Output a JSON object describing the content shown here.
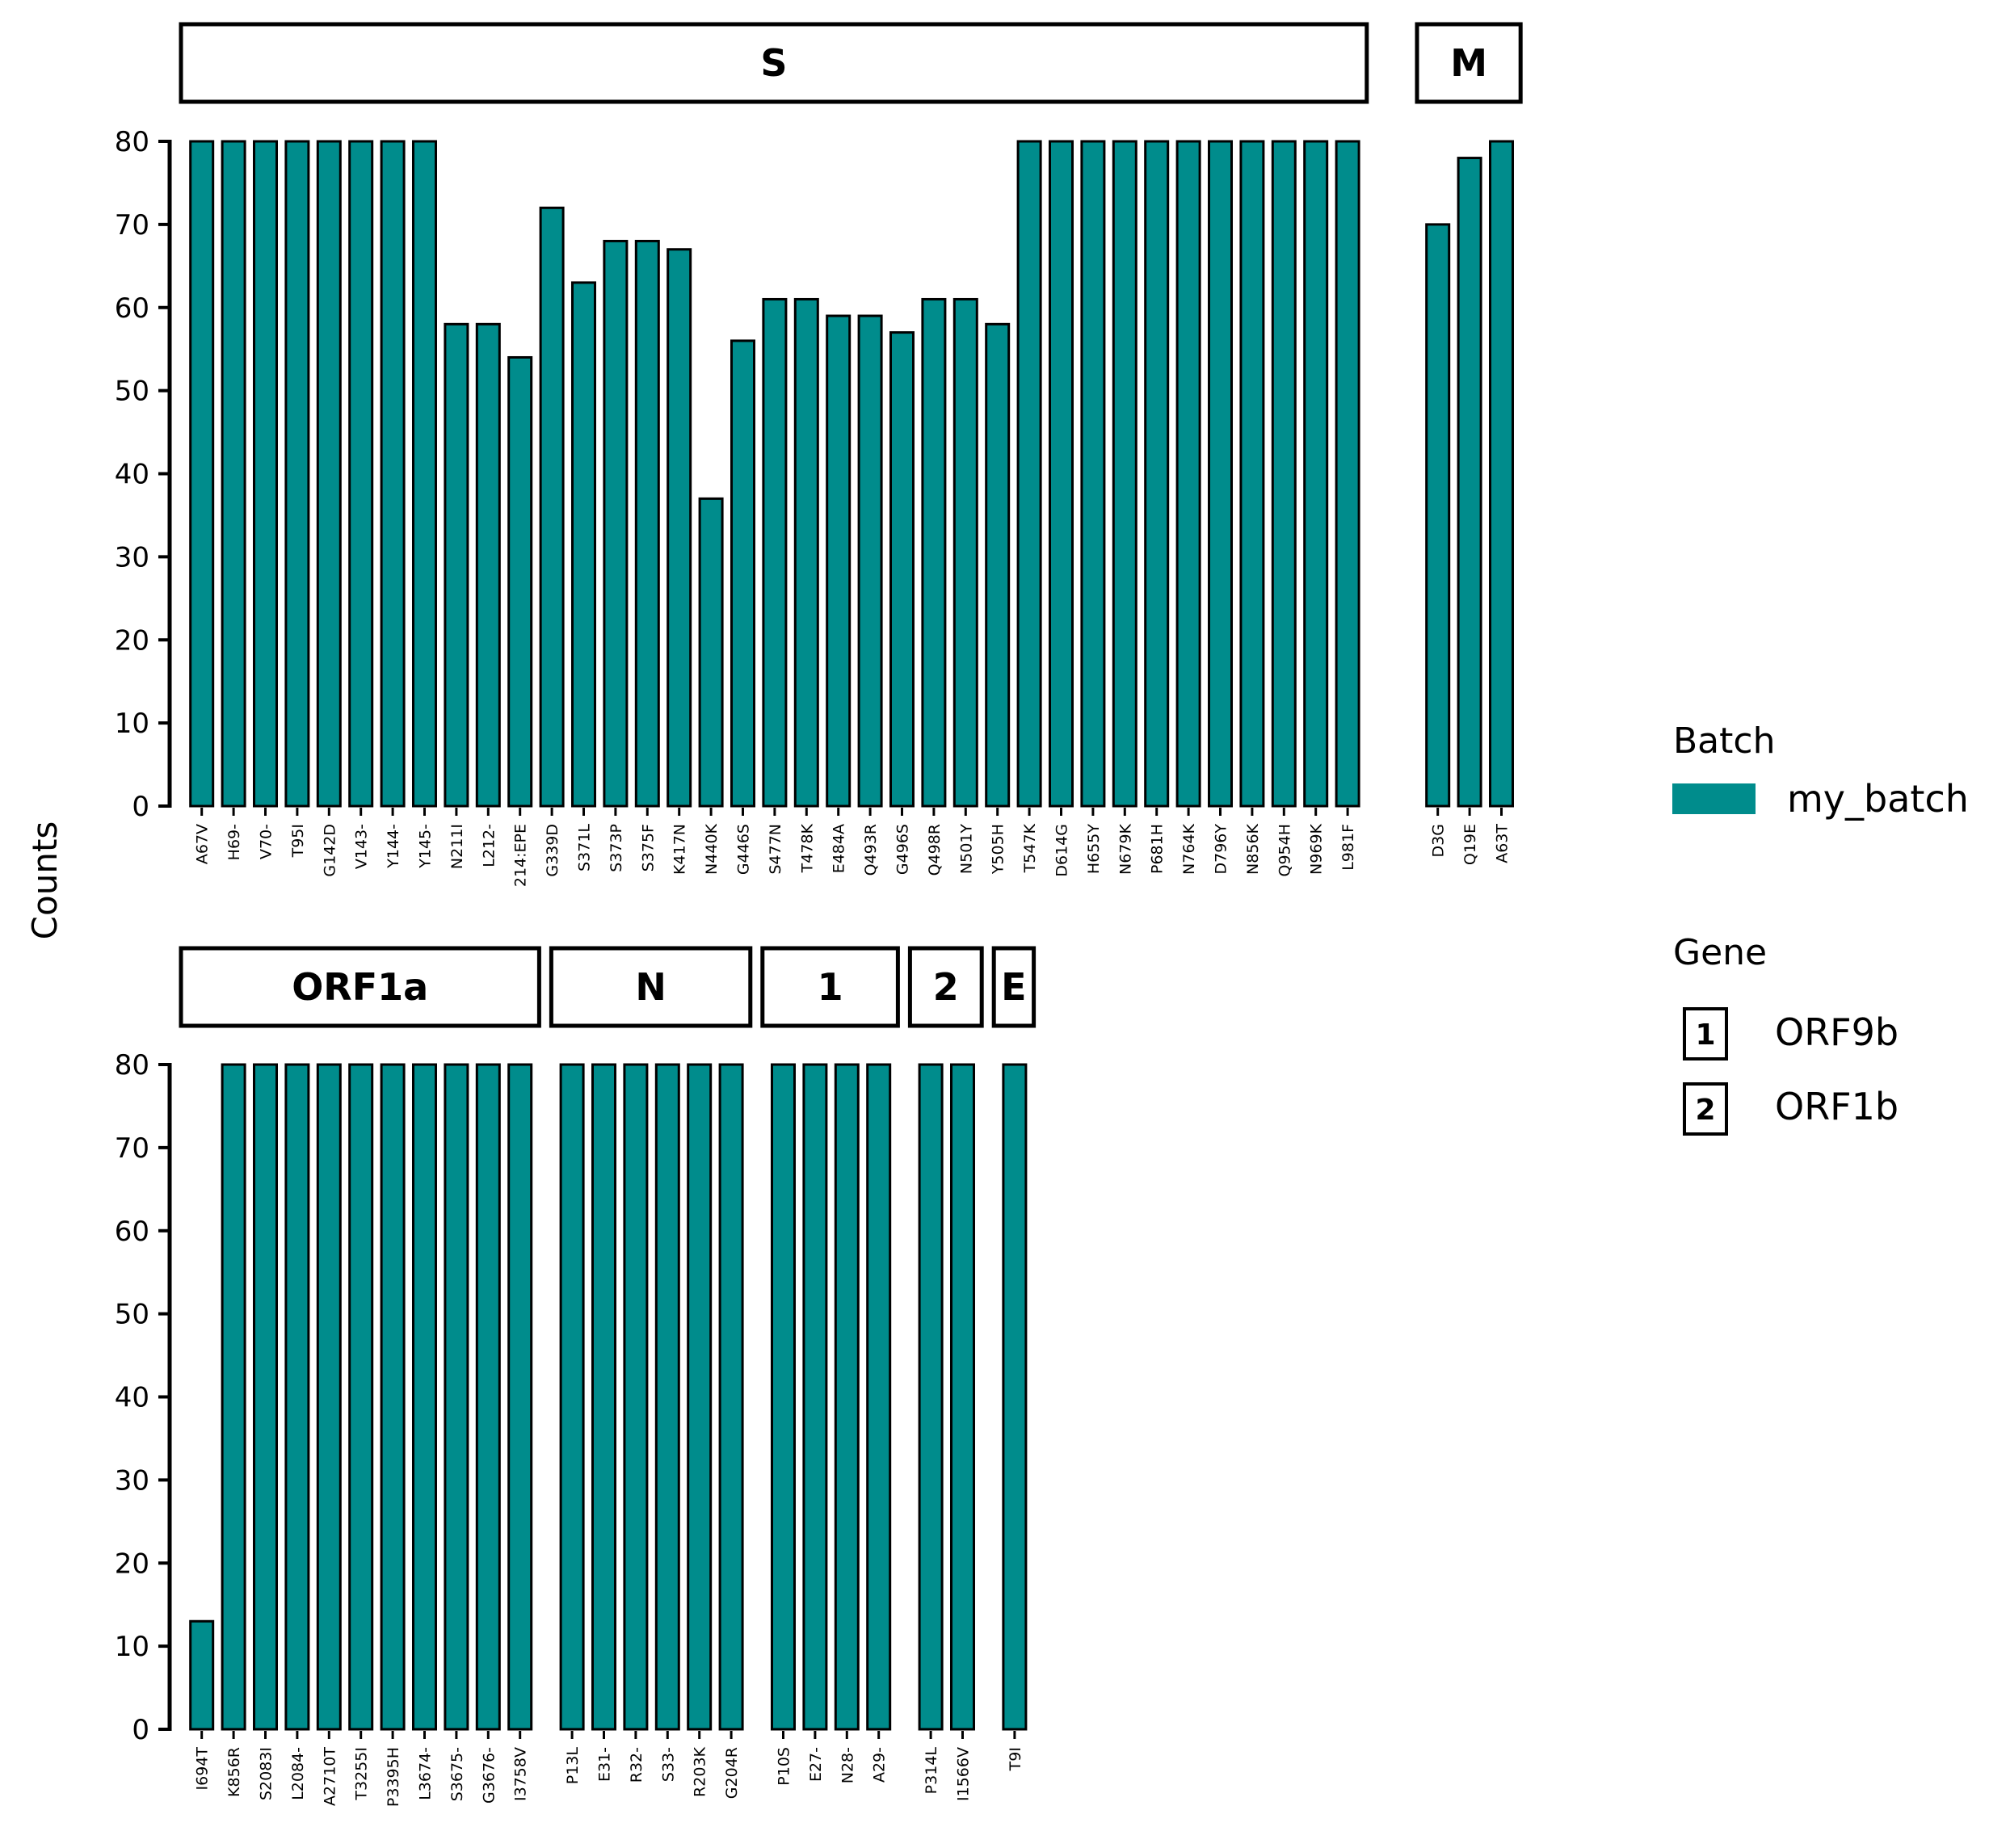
{
  "colors": {
    "bar_fill": "#008C8C",
    "bar_stroke": "#000000"
  },
  "chart_data": {
    "type": "bar",
    "ylabel": "Counts",
    "ylim": [
      0,
      80
    ],
    "yticks": [
      "0",
      "10",
      "20",
      "30",
      "40",
      "50",
      "60",
      "70",
      "80"
    ],
    "rows": [
      {
        "panels": [
          {
            "strip": "S",
            "categories": [
              "A67V",
              "H69-",
              "V70-",
              "T95I",
              "G142D",
              "V143-",
              "Y144-",
              "Y145-",
              "N211I",
              "L212-",
              "214:EPE",
              "G339D",
              "S371L",
              "S373P",
              "S375F",
              "K417N",
              "N440K",
              "G446S",
              "S477N",
              "T478K",
              "E484A",
              "Q493R",
              "G496S",
              "Q498R",
              "N501Y",
              "Y505H",
              "T547K",
              "D614G",
              "H655Y",
              "N679K",
              "P681H",
              "N764K",
              "D796Y",
              "N856K",
              "Q954H",
              "N969K",
              "L981F"
            ],
            "values": [
              80,
              80,
              80,
              80,
              80,
              80,
              80,
              80,
              58,
              58,
              54,
              72,
              63,
              68,
              68,
              67,
              37,
              56,
              61,
              61,
              59,
              59,
              57,
              61,
              61,
              58,
              80,
              80,
              80,
              80,
              80,
              80,
              80,
              80,
              80,
              80,
              80
            ]
          },
          {
            "strip": "M",
            "categories": [
              "D3G",
              "Q19E",
              "A63T"
            ],
            "values": [
              70,
              78,
              80
            ]
          }
        ]
      },
      {
        "panels": [
          {
            "strip": "ORF1a",
            "categories": [
              "I694T",
              "K856R",
              "S2083I",
              "L2084-",
              "A2710T",
              "T3255I",
              "P3395H",
              "L3674-",
              "S3675-",
              "G3676-",
              "I3758V"
            ],
            "values": [
              13,
              80,
              80,
              80,
              80,
              80,
              80,
              80,
              80,
              80,
              80
            ]
          },
          {
            "strip": "N",
            "categories": [
              "P13L",
              "E31-",
              "R32-",
              "S33-",
              "R203K",
              "G204R"
            ],
            "values": [
              80,
              80,
              80,
              80,
              80,
              80
            ]
          },
          {
            "strip": "1",
            "categories": [
              "P10S",
              "E27-",
              "N28-",
              "A29-"
            ],
            "values": [
              80,
              80,
              80,
              80
            ]
          },
          {
            "strip": "2",
            "categories": [
              "P314L",
              "I1566V"
            ],
            "values": [
              80,
              80
            ]
          },
          {
            "strip": "E",
            "categories": [
              "T9I"
            ],
            "values": [
              80
            ]
          }
        ]
      }
    ],
    "legend": {
      "placement": "right",
      "batch_title": "Batch",
      "batch_entries": [
        {
          "name": "my_batch"
        }
      ],
      "gene_title": "Gene",
      "gene_entries": [
        {
          "key": "1",
          "name": "ORF9b"
        },
        {
          "key": "2",
          "name": "ORF1b"
        }
      ]
    }
  }
}
